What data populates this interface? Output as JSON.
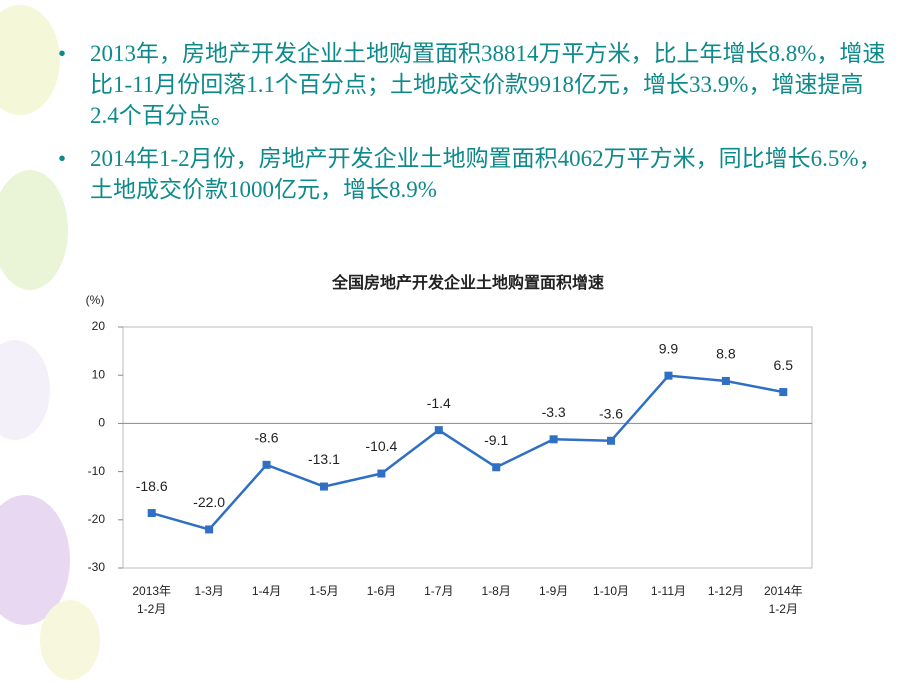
{
  "bullets": [
    "2013年，房地产开发企业土地购置面积38814万平方米，比上年增长8.8%，增速比1-11月份回落1.1个百分点；土地成交价款9918亿元，增长33.9%，增速提高2.4个百分点。",
    "2014年1-2月份，房地产开发企业土地购置面积4062万平方米，同比增长6.5%，土地成交价款1000亿元，增长8.9%"
  ],
  "chart_data": {
    "type": "line",
    "title": "全国房地产开发企业土地购置面积增速",
    "y_unit": "(%)",
    "categories": [
      "2013年\n1-2月",
      "1-3月",
      "1-4月",
      "1-5月",
      "1-6月",
      "1-7月",
      "1-8月",
      "1-9月",
      "1-10月",
      "1-11月",
      "1-12月",
      "2014年\n1-2月"
    ],
    "values": [
      -18.6,
      -22.0,
      -8.6,
      -13.1,
      -10.4,
      -1.4,
      -9.1,
      -3.3,
      -3.6,
      9.9,
      8.8,
      6.5
    ],
    "value_labels": [
      "-18.6",
      "-22.0",
      "-8.6",
      "-13.1",
      "-10.4",
      "-1.4",
      "-9.1",
      "-3.3",
      "-3.6",
      "9.9",
      "8.8",
      "6.5"
    ],
    "color": "#2f6fc4",
    "ylim": [
      -30,
      20
    ],
    "yticks": [
      -30,
      -20,
      -10,
      0,
      10,
      20
    ],
    "grid": false
  }
}
